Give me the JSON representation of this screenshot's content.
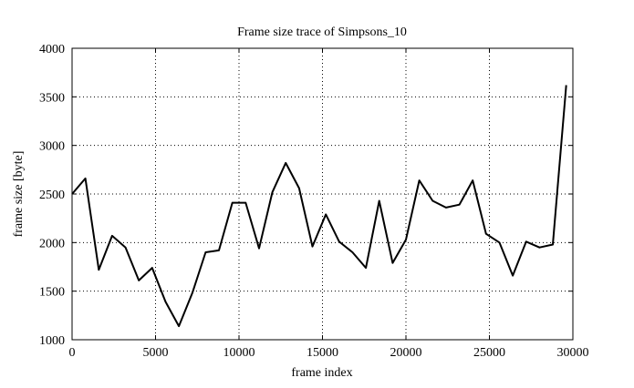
{
  "chart_data": {
    "type": "line",
    "title": "Frame size trace of Simpsons_10",
    "xlabel": "frame index",
    "ylabel": "frame size [byte]",
    "xlim": [
      0,
      30000
    ],
    "ylim": [
      1000,
      4000
    ],
    "xticks": [
      0,
      5000,
      10000,
      15000,
      20000,
      25000,
      30000
    ],
    "yticks": [
      1000,
      1500,
      2000,
      2500,
      3000,
      3500,
      4000
    ],
    "xtick_labels": [
      "0",
      "5000",
      "10000",
      "15000",
      "20000",
      "25000",
      "30000"
    ],
    "ytick_labels": [
      "1000",
      "1500",
      "2000",
      "2500",
      "3000",
      "3500",
      "4000"
    ],
    "grid": true,
    "legend": "none",
    "series": [
      {
        "color": "#000000",
        "x": [
          0,
          800,
          1600,
          2400,
          3200,
          4000,
          4800,
          5600,
          6400,
          7200,
          8000,
          8800,
          9600,
          10400,
          11200,
          12000,
          12800,
          13600,
          14400,
          15200,
          16000,
          16800,
          17600,
          18400,
          19200,
          20000,
          20800,
          21600,
          22400,
          23200,
          24000,
          24800,
          25600,
          26400,
          27200,
          28000,
          28800,
          29600
        ],
        "y": [
          2500,
          2660,
          1720,
          2070,
          1950,
          1610,
          1740,
          1390,
          1140,
          1480,
          1900,
          1920,
          2410,
          2410,
          1940,
          2520,
          2820,
          2560,
          1960,
          2290,
          2010,
          1900,
          1740,
          2430,
          1790,
          2030,
          2640,
          2430,
          2360,
          2390,
          2640,
          2090,
          2000,
          1660,
          2010,
          1950,
          1980,
          3620
        ]
      }
    ]
  }
}
